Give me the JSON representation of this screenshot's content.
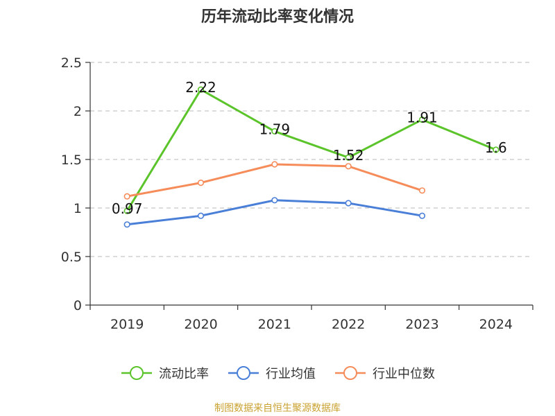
{
  "chart_data": {
    "type": "line",
    "title": "历年流动比率变化情况",
    "xlabel": "",
    "ylabel": "",
    "categories": [
      "2019",
      "2020",
      "2021",
      "2022",
      "2023",
      "2024"
    ],
    "ylim": [
      0,
      2.5
    ],
    "yticks": [
      "0",
      "0.5",
      "1",
      "1.5",
      "2",
      "2.5"
    ],
    "grid": true,
    "legend_position": "bottom",
    "series": [
      {
        "name": "流动比率",
        "color": "#5bc42a",
        "values": [
          0.97,
          2.22,
          1.79,
          1.52,
          1.91,
          1.6
        ],
        "data_labels": [
          "0.97",
          "2.22",
          "1.79",
          "1.52",
          "1.91",
          "1.6"
        ]
      },
      {
        "name": "行业均值",
        "color": "#4a7fd8",
        "values": [
          0.83,
          0.92,
          1.08,
          1.05,
          0.92,
          null
        ]
      },
      {
        "name": "行业中位数",
        "color": "#f58c5a",
        "values": [
          1.12,
          1.26,
          1.45,
          1.43,
          1.18,
          null
        ]
      }
    ]
  },
  "footer": {
    "source": "制图数据来自恒生聚源数据库"
  }
}
